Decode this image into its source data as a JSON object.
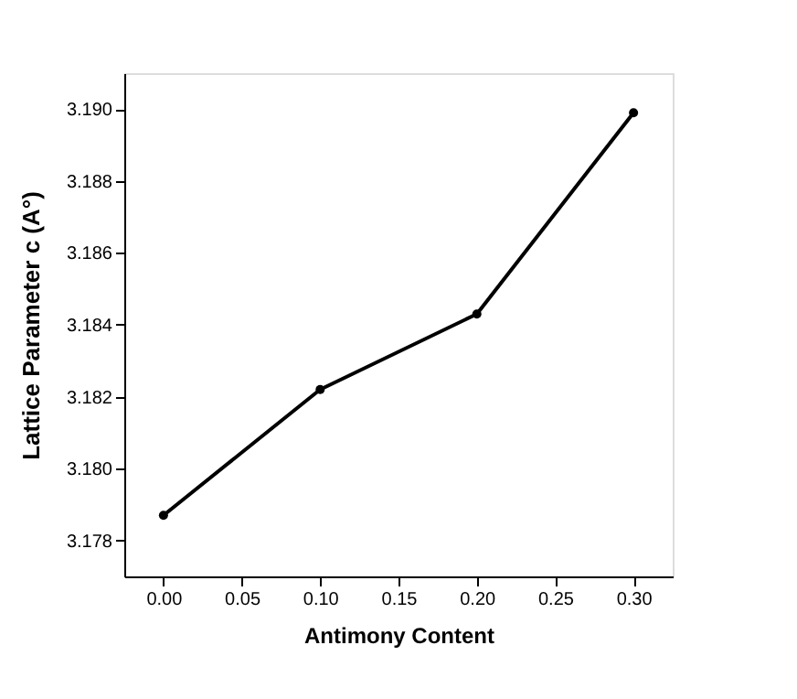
{
  "chart_data": {
    "type": "line",
    "xlabel": "Antimony Content",
    "ylabel": "Lattice Parameter c (A°)",
    "x": [
      0.0,
      0.1,
      0.2,
      0.3
    ],
    "series": [
      {
        "color": "#000000",
        "values": [
          3.1787,
          3.1822,
          3.1843,
          3.1899
        ]
      }
    ],
    "xlim": [
      -0.025,
      0.325
    ],
    "ylim": [
      3.177,
      3.191
    ],
    "xticks": [
      {
        "value": 0,
        "label": "0.00"
      },
      0.05,
      {
        "value": 0.1,
        "label": "0.10"
      },
      0.15,
      {
        "value": 0.2,
        "label": "0.20"
      },
      0.25,
      {
        "value": 0.3,
        "label": "0.30"
      }
    ],
    "yticks": [
      3.178,
      {
        "value": 3.18,
        "label": "3.180"
      },
      3.182,
      3.184,
      3.186,
      3.188,
      {
        "value": 3.19,
        "label": "3.190"
      }
    ],
    "grid": false,
    "marker": "circle",
    "line_style": "solid"
  }
}
